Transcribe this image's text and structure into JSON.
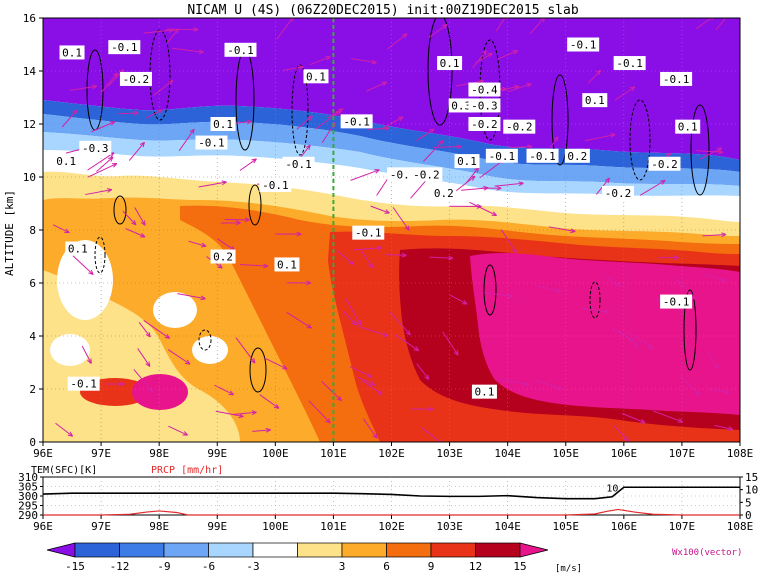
{
  "title": "NICAM U (4S) (06Z20DEC2015) init:00Z19DEC2015 slab",
  "chart_data": [
    {
      "type": "heatmap",
      "title": "NICAM U (4S) (06Z20DEC2015) init:00Z19DEC2015 slab",
      "ylabel": "ALTITUDE [km]",
      "x_ticks": [
        "96E",
        "97E",
        "98E",
        "99E",
        "100E",
        "101E",
        "102E",
        "103E",
        "104E",
        "105E",
        "106E",
        "107E",
        "108E"
      ],
      "x_range": [
        96,
        108
      ],
      "y_ticks": [
        "0",
        "2",
        "4",
        "6",
        "8",
        "10",
        "12",
        "14",
        "16"
      ],
      "y_range": [
        0,
        16
      ],
      "vertical_line_x": 101,
      "contour_labels": [
        {
          "text": "0.1",
          "x": 96.5,
          "y": 14.7
        },
        {
          "text": "-0.1",
          "x": 97.4,
          "y": 14.9
        },
        {
          "text": "-0.2",
          "x": 97.6,
          "y": 13.7
        },
        {
          "text": "-0.1",
          "x": 99.4,
          "y": 14.8
        },
        {
          "text": "0.1",
          "x": 100.7,
          "y": 13.8
        },
        {
          "text": "0.1",
          "x": 103.0,
          "y": 14.3
        },
        {
          "text": "-0.4",
          "x": 103.6,
          "y": 13.3
        },
        {
          "text": "0.3",
          "x": 103.2,
          "y": 12.7
        },
        {
          "text": "-0.3",
          "x": 103.6,
          "y": 12.7
        },
        {
          "text": "-0.2",
          "x": 103.6,
          "y": 12.0
        },
        {
          "text": "-0.2",
          "x": 104.2,
          "y": 11.9
        },
        {
          "text": "-0.1",
          "x": 105.3,
          "y": 15.0
        },
        {
          "text": "-0.1",
          "x": 106.1,
          "y": 14.3
        },
        {
          "text": "-0.1",
          "x": 106.9,
          "y": 13.7
        },
        {
          "text": "0.1",
          "x": 105.5,
          "y": 12.9
        },
        {
          "text": "0.1",
          "x": 107.1,
          "y": 11.9
        },
        {
          "text": "0.1",
          "x": 99.1,
          "y": 12.0
        },
        {
          "text": "-0.1",
          "x": 101.4,
          "y": 12.1
        },
        {
          "text": "-0.1",
          "x": 98.9,
          "y": 11.3
        },
        {
          "text": "-0.3",
          "x": 96.9,
          "y": 11.1
        },
        {
          "text": "-0.1",
          "x": 100.4,
          "y": 10.5
        },
        {
          "text": "0.1",
          "x": 103.3,
          "y": 10.6
        },
        {
          "text": "-0.1",
          "x": 103.9,
          "y": 10.8
        },
        {
          "text": "-0.1",
          "x": 104.6,
          "y": 10.8
        },
        {
          "text": "0.2",
          "x": 105.2,
          "y": 10.8
        },
        {
          "text": "-0.2",
          "x": 106.7,
          "y": 10.5
        },
        {
          "text": "0.1",
          "x": 96.4,
          "y": 10.6
        },
        {
          "text": "-0.1",
          "x": 102.2,
          "y": 10.1
        },
        {
          "text": "-0.2",
          "x": 102.6,
          "y": 10.1
        },
        {
          "text": "0.2",
          "x": 102.9,
          "y": 9.4
        },
        {
          "text": "-0.2",
          "x": 105.9,
          "y": 9.4
        },
        {
          "text": "-0.1",
          "x": 100.0,
          "y": 9.7
        },
        {
          "text": "-0.1",
          "x": 101.6,
          "y": 7.9
        },
        {
          "text": "0.1",
          "x": 96.6,
          "y": 7.3
        },
        {
          "text": "0.2",
          "x": 99.1,
          "y": 7.0
        },
        {
          "text": "0.1",
          "x": 100.2,
          "y": 6.7
        },
        {
          "text": "-0.1",
          "x": 106.9,
          "y": 5.3
        },
        {
          "text": "-0.1",
          "x": 96.7,
          "y": 2.2
        },
        {
          "text": "0.1",
          "x": 103.6,
          "y": 1.9
        }
      ]
    },
    {
      "type": "line",
      "label_left": "TEM(SFC)[K]",
      "label_right": "PRCP [mm/hr]",
      "left_ticks": [
        "310",
        "305",
        "300",
        "295",
        "290"
      ],
      "left_range": [
        290,
        310
      ],
      "right_ticks": [
        "15",
        "10",
        "5",
        "0"
      ],
      "right_range": [
        0,
        15
      ],
      "x_ticks": [
        "96E",
        "97E",
        "98E",
        "99E",
        "100E",
        "101E",
        "102E",
        "103E",
        "104E",
        "105E",
        "106E",
        "107E",
        "108E"
      ],
      "annotation": "10",
      "series": [
        {
          "name": "TEM(SFC)[K]",
          "color": "#000000",
          "x": [
            96.0,
            96.5,
            97.0,
            97.5,
            98.0,
            98.5,
            99.0,
            99.5,
            100.0,
            100.5,
            101.0,
            101.5,
            102.0,
            102.5,
            103.0,
            103.5,
            104.0,
            104.5,
            105.0,
            105.5,
            105.8,
            106.0,
            106.5,
            107.0,
            108.0
          ],
          "y": [
            301,
            301.5,
            301.5,
            301.5,
            301.5,
            301.5,
            301.5,
            301.5,
            301.5,
            301.5,
            301.5,
            301.2,
            300.8,
            300.0,
            299.8,
            299.8,
            300.2,
            299.2,
            298.6,
            298.6,
            299.6,
            304.6,
            304.6,
            304.6,
            304.6
          ]
        },
        {
          "name": "PRCP [mm/hr]",
          "color": "#e22a2a",
          "x": [
            96.0,
            97.0,
            97.5,
            97.8,
            98.0,
            98.3,
            98.5,
            99.0,
            100.0,
            101.0,
            102.0,
            103.0,
            104.0,
            105.0,
            105.5,
            105.7,
            105.9,
            106.2,
            106.5,
            107.0,
            108.0
          ],
          "y": [
            0,
            0,
            0.3,
            1.2,
            1.6,
            1.0,
            0,
            0,
            0,
            0,
            0,
            0,
            0,
            0,
            0.4,
            1.4,
            2.2,
            1.1,
            0.3,
            0,
            0
          ]
        }
      ]
    }
  ],
  "colorbar": {
    "ticks": [
      "-15",
      "-12",
      "-9",
      "-6",
      "-3",
      "3",
      "6",
      "9",
      "12",
      "15"
    ],
    "unit": "[m/s]",
    "vector_label": "Wx100(vector)",
    "colors": [
      "#8a0ee6",
      "#2d63d8",
      "#3d7ce6",
      "#6ca6f5",
      "#a8d6ff",
      "#ffffff",
      "#fde28a",
      "#fcab2a",
      "#f46d0e",
      "#e83318",
      "#b5001e",
      "#e8148c"
    ]
  }
}
